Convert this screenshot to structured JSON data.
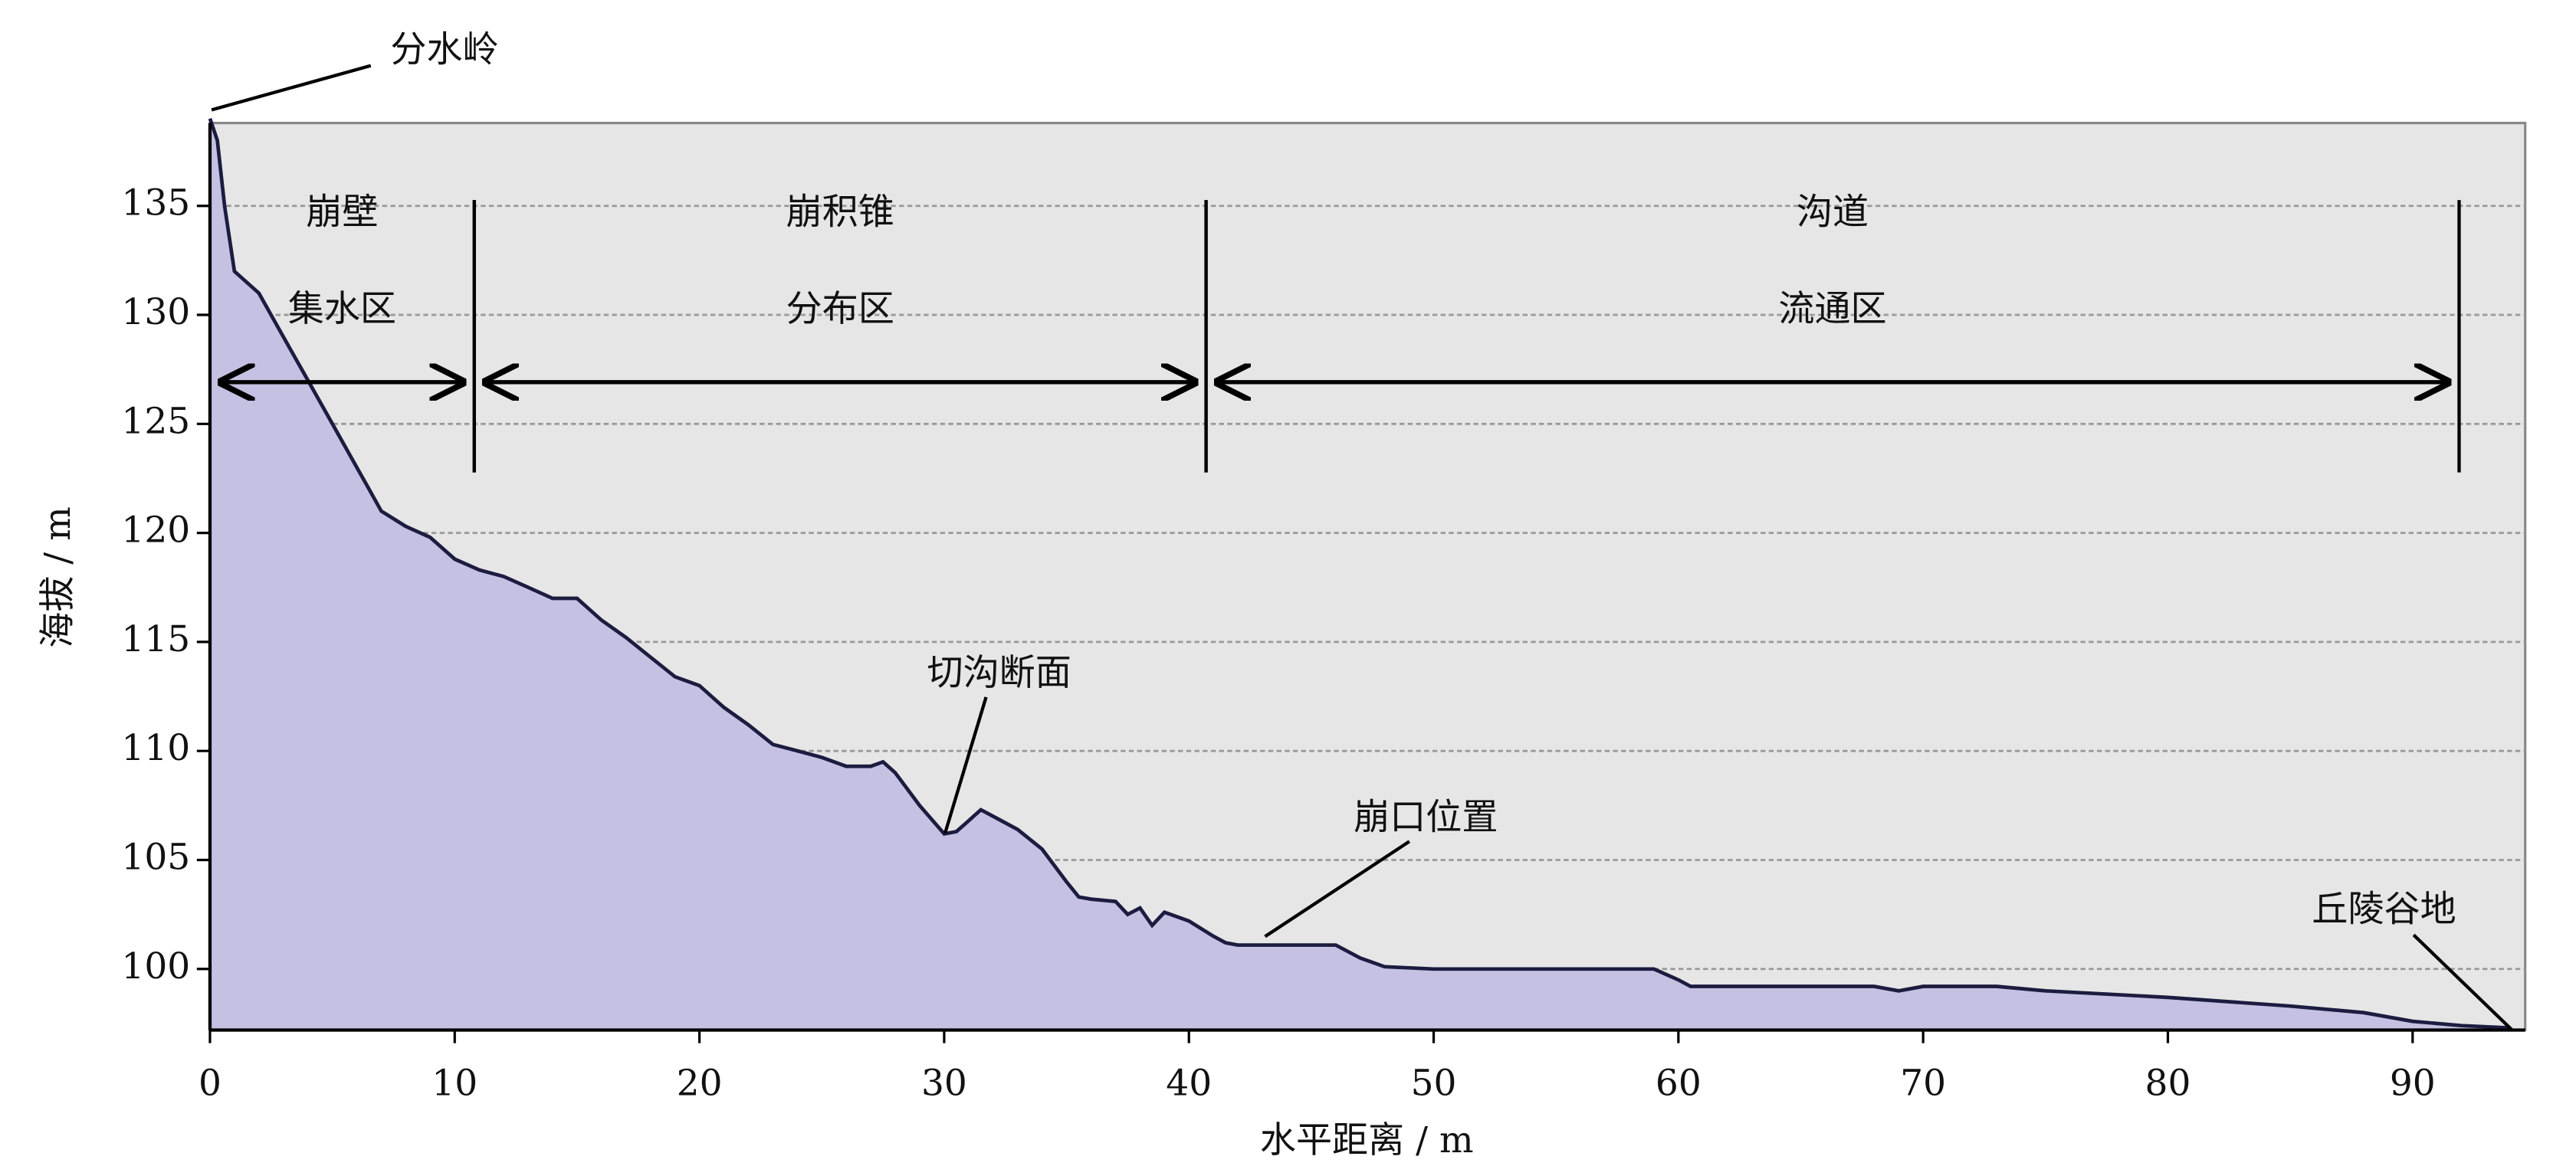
{
  "chart_data": {
    "type": "area",
    "x_label": "水平距离 / m",
    "y_label": "海拔 / m",
    "x": [
      0,
      0.3,
      0.6,
      1,
      2,
      3,
      4,
      5,
      6,
      6.5,
      7,
      8,
      9,
      10,
      11,
      12,
      13,
      14,
      15,
      16,
      17,
      18,
      19,
      20,
      21,
      22,
      23,
      24,
      25,
      26,
      27,
      27.5,
      28,
      29,
      30,
      30.5,
      31,
      31.5,
      32,
      33,
      34,
      35,
      35.5,
      36,
      37,
      37.5,
      38,
      38.5,
      39,
      40,
      41,
      41.5,
      42,
      46,
      47,
      48,
      50,
      59,
      60,
      60.5,
      68,
      69,
      70,
      73,
      75,
      80,
      85,
      88,
      90,
      92,
      94
    ],
    "values": [
      139,
      138,
      135,
      132,
      131,
      129,
      127,
      125,
      123,
      122,
      121,
      120.3,
      119.8,
      118.8,
      118.3,
      118,
      117.5,
      117,
      117,
      116,
      115.2,
      114.3,
      113.4,
      113,
      112,
      111.2,
      110.3,
      110,
      109.7,
      109.3,
      109.3,
      109.5,
      109,
      107.5,
      106.2,
      106.3,
      106.8,
      107.3,
      107,
      106.4,
      105.5,
      104,
      103.3,
      103.2,
      103.1,
      102.5,
      102.8,
      102,
      102.6,
      102.2,
      101.5,
      101.2,
      101.1,
      101.1,
      100.5,
      100.1,
      100,
      100,
      99.5,
      99.2,
      99.2,
      99,
      99.2,
      99.2,
      99,
      98.7,
      98.3,
      98,
      97.6,
      97.4,
      97.3
    ],
    "color": "#c4c1e2",
    "line_color": "#1c1c40",
    "background": "#e6e6e6",
    "xlim": [
      0,
      94.6
    ],
    "ylim": [
      97.2,
      138.8
    ],
    "xticks": [
      0,
      10,
      20,
      30,
      40,
      50,
      60,
      70,
      80,
      90
    ],
    "yticks": [
      100,
      105,
      110,
      115,
      120,
      125,
      130,
      135
    ],
    "grid": true,
    "zones": [
      {
        "label": "崩壁",
        "sublabel": "集水区",
        "start": 0,
        "end": 10.8
      },
      {
        "label": "崩积锥",
        "sublabel": "分布区",
        "start": 10.8,
        "end": 40.7
      },
      {
        "label": "沟道",
        "sublabel": "流通区",
        "start": 40.7,
        "end": 91.9
      }
    ],
    "annotations": [
      "分水岭",
      "切沟断面",
      "崩口位置",
      "丘陵谷地"
    ]
  }
}
